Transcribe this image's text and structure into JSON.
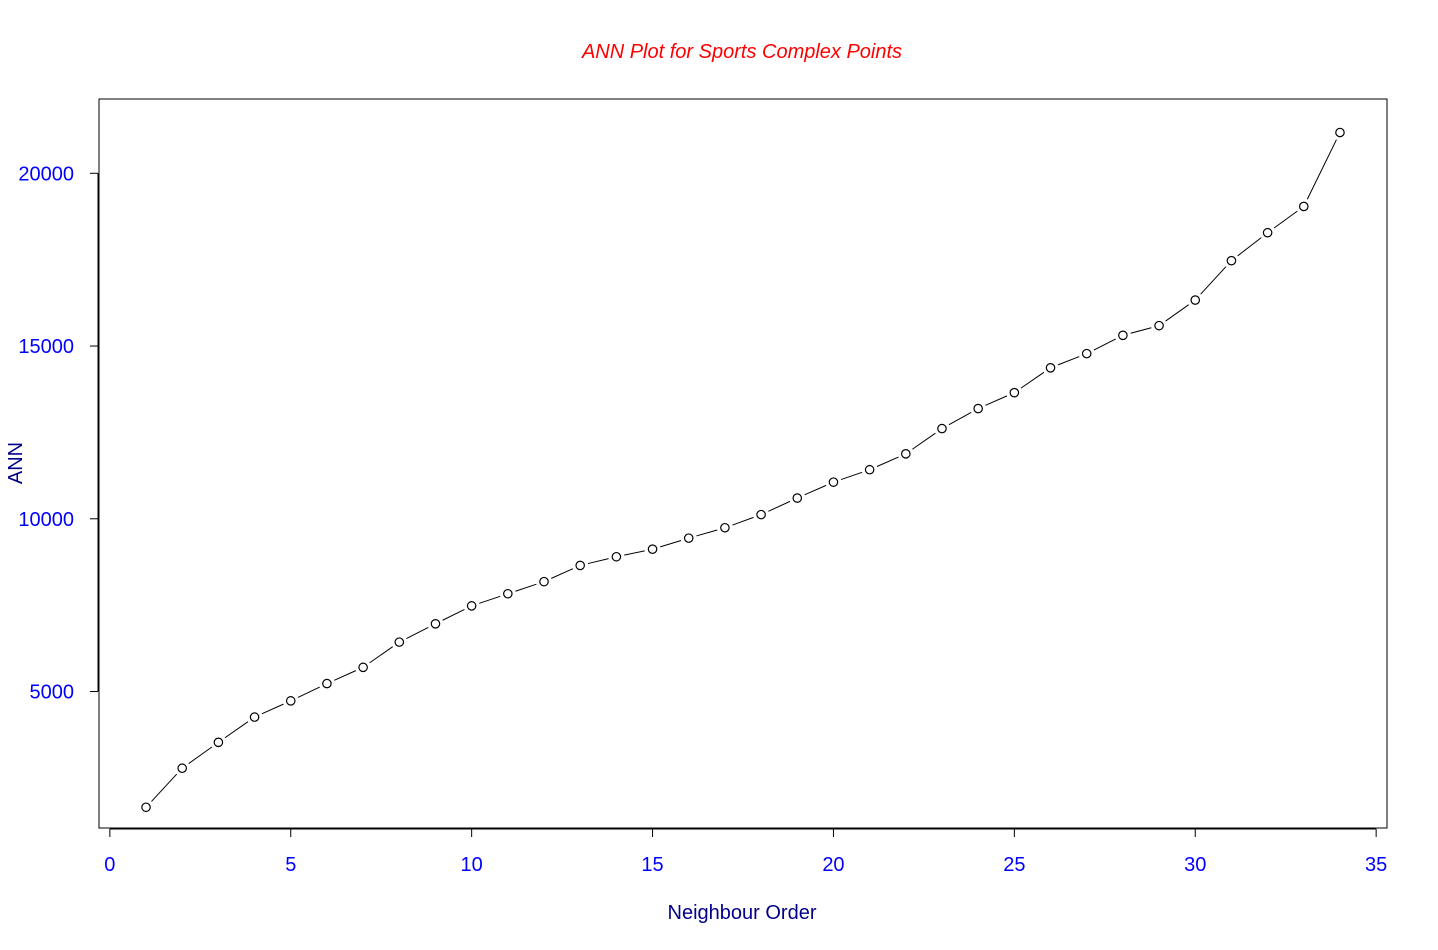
{
  "chart_data": {
    "type": "line",
    "title": "ANN Plot for Sports Complex Points",
    "xlabel": "Neighbour Order",
    "ylabel": "ANN",
    "xlim": [
      -0.3,
      35.3
    ],
    "ylim": [
      1050,
      22150
    ],
    "x_ticks": [
      "0",
      "5",
      "10",
      "15",
      "20",
      "25",
      "30",
      "35"
    ],
    "y_ticks": [
      "5000",
      "10000",
      "15000",
      "20000"
    ],
    "grid": false,
    "legend": "none",
    "marker": "open-circle",
    "colors": {
      "title": "#ff0000",
      "axis_label": "#00008b",
      "tick_label": "#0000ff",
      "line": "#000000",
      "box": "#000000"
    },
    "series": [
      {
        "x": [
          1,
          2,
          3,
          4,
          5,
          6,
          7,
          8,
          9,
          10,
          11,
          12,
          13,
          14,
          15,
          16,
          17,
          18,
          19,
          20,
          21,
          22,
          23,
          24,
          25,
          26,
          27,
          28,
          29,
          30,
          31,
          32,
          33,
          34
        ],
        "values": [
          1650,
          2780,
          3530,
          4260,
          4730,
          5230,
          5700,
          6430,
          6960,
          7480,
          7830,
          8180,
          8650,
          8900,
          9120,
          9440,
          9740,
          10120,
          10600,
          11060,
          11420,
          11880,
          12610,
          13190,
          13650,
          14370,
          14780,
          15310,
          15590,
          16330,
          17470,
          18280,
          19040,
          21180
        ]
      }
    ]
  }
}
